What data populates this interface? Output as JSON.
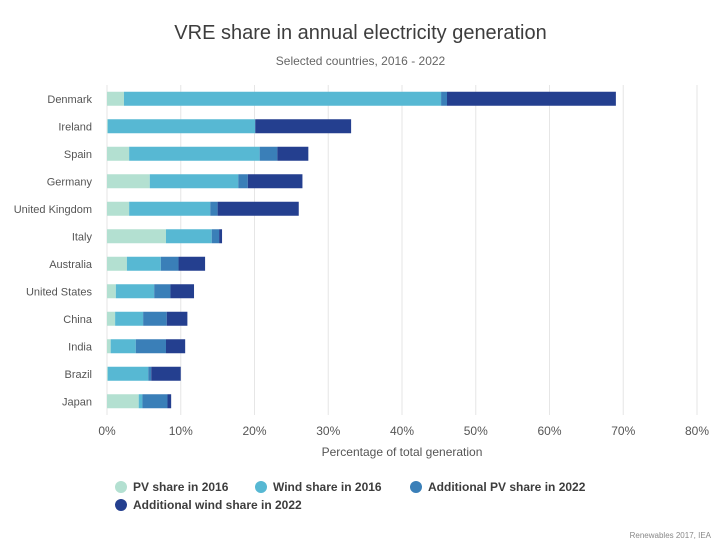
{
  "chart_data": {
    "type": "bar",
    "orientation": "horizontal",
    "stacked": true,
    "title": "VRE share in annual electricity generation",
    "subtitle": "Selected countries, 2016 - 2022",
    "xlabel": "Percentage of total generation",
    "ylabel": "",
    "xlim": [
      0,
      80
    ],
    "x_ticks": [
      "0%",
      "10%",
      "20%",
      "30%",
      "40%",
      "50%",
      "60%",
      "70%",
      "80%"
    ],
    "grid": "vertical",
    "legend_position": "bottom",
    "categories": [
      "Denmark",
      "Ireland",
      "Spain",
      "Germany",
      "United Kingdom",
      "Italy",
      "Australia",
      "United States",
      "China",
      "India",
      "Brazil",
      "Japan"
    ],
    "series": [
      {
        "name": "PV share in 2016",
        "color": "#b3e0d1",
        "values": [
          2.3,
          0.1,
          3.0,
          5.8,
          3.0,
          8.0,
          2.7,
          1.2,
          1.1,
          0.5,
          0.1,
          4.3
        ]
      },
      {
        "name": "Wind share in 2016",
        "color": "#57b8d3",
        "values": [
          43.0,
          20.0,
          17.7,
          12.0,
          11.0,
          6.2,
          4.6,
          5.2,
          3.8,
          3.4,
          5.5,
          0.5
        ]
      },
      {
        "name": "Additional PV share in 2022",
        "color": "#3a7fb8",
        "values": [
          0.8,
          0.0,
          2.4,
          1.3,
          1.0,
          1.0,
          2.4,
          2.2,
          3.2,
          4.1,
          0.4,
          3.4
        ]
      },
      {
        "name": "Additional wind share in 2022",
        "color": "#243f8f",
        "values": [
          22.9,
          13.0,
          4.2,
          7.4,
          11.0,
          0.4,
          3.6,
          3.2,
          2.8,
          2.6,
          4.0,
          0.5
        ]
      }
    ],
    "source": "Renewables 2017, IEA"
  }
}
